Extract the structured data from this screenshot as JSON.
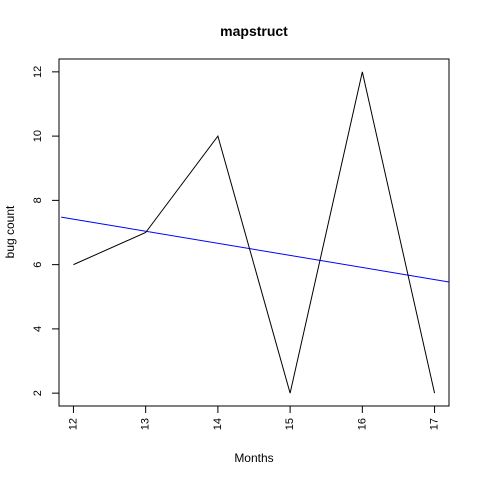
{
  "chart_data": {
    "type": "line",
    "title": "mapstruct",
    "xlabel": "Months",
    "ylabel": "bug count",
    "x": [
      12,
      13,
      14,
      15,
      16,
      17
    ],
    "series": [
      {
        "values": [
          6,
          7,
          10,
          2,
          12,
          2
        ],
        "color": "#000000"
      }
    ],
    "trend_line": {
      "from": [
        11.83,
        7.48
      ],
      "to": [
        17.2,
        5.46
      ],
      "color": "#0000ff"
    },
    "xticks": [
      "12",
      "13",
      "14",
      "15",
      "16",
      "17"
    ],
    "yticks": [
      "2",
      "4",
      "6",
      "8",
      "10",
      "12"
    ],
    "xlim": [
      11.8,
      17.2
    ],
    "ylim": [
      1.6,
      12.4
    ],
    "grid": false,
    "legend": "none"
  }
}
